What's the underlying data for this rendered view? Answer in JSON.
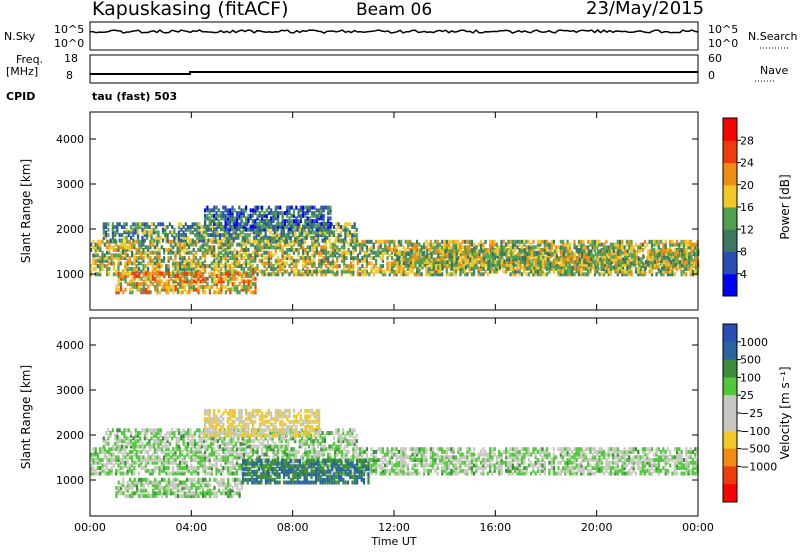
{
  "header": {
    "station": "Kapuskasing (fitACF)",
    "beam": "Beam 06",
    "date": "23/May/2015"
  },
  "status_panels": {
    "nsky_label": "N.Sky",
    "nsky_ticks": [
      "10^5",
      "10^0"
    ],
    "nsearch_label": "N.Search",
    "nsearch_ticks": [
      "10^5",
      "10^0"
    ],
    "freq_label": "Freq.",
    "freq_unit": "[MHz]",
    "freq_ticks": [
      "18",
      "8"
    ],
    "nave_label": "Nave",
    "nave_ticks": [
      "60",
      "0"
    ],
    "cpid_label": "CPID",
    "cpid_value": "tau (fast) 503"
  },
  "chart_data": [
    {
      "type": "heatmap",
      "name": "power-panel",
      "ylabel": "Slant Range [km]",
      "yticks": [
        1000,
        2000,
        3000,
        4000
      ],
      "ylim": [
        200,
        4600
      ],
      "xlim": [
        0,
        24
      ],
      "x_tick_values": [
        0,
        4,
        8,
        12,
        16,
        20,
        24
      ],
      "colorbar": {
        "label": "Power [dB]",
        "tick_labels": [
          "4",
          "8",
          "12",
          "16",
          "20",
          "24",
          "28"
        ],
        "range": [
          0,
          30
        ],
        "colors": [
          "#0000ff",
          "#2850b4",
          "#3c7860",
          "#50a050",
          "#f0c828",
          "#f08c14",
          "#f03c0a",
          "#ff0000"
        ]
      },
      "echo_bands": [
        {
          "t0": 0.0,
          "t1": 24.0,
          "r0": 950,
          "r1": 1700,
          "level": 16
        },
        {
          "t0": 0.5,
          "t1": 10.5,
          "r0": 1700,
          "r1": 2100,
          "level": 12
        },
        {
          "t0": 1.0,
          "t1": 6.5,
          "r0": 550,
          "r1": 1000,
          "level": 20
        },
        {
          "t0": 4.5,
          "t1": 9.5,
          "r0": 1950,
          "r1": 2450,
          "level": 8
        },
        {
          "t0": 12.0,
          "t1": 24.0,
          "r0": 1100,
          "r1": 1500,
          "level": 16
        }
      ]
    },
    {
      "type": "heatmap",
      "name": "velocity-panel",
      "ylabel": "Slant Range [km]",
      "yticks": [
        1000,
        2000,
        3000,
        4000
      ],
      "ylim": [
        200,
        4600
      ],
      "xlim": [
        0,
        24
      ],
      "xlabel": "Time UT",
      "x_tick_labels": [
        "00:00",
        "04:00",
        "08:00",
        "12:00",
        "16:00",
        "20:00",
        "00:00"
      ],
      "colorbar": {
        "label": "Velocity [m s⁻¹]",
        "tick_labels": [
          "1000",
          "500",
          "100",
          "25",
          "−25",
          "−100",
          "−500",
          "−1000"
        ],
        "range": [
          -1000,
          1000
        ],
        "colors": [
          "#2850b4",
          "#2864a0",
          "#3c8c3c",
          "#50c83c",
          "#c8c8c0",
          "#c8c8c0",
          "#f0c828",
          "#f08c14",
          "#f03c0a",
          "#ff0000"
        ]
      },
      "echo_bands": [
        {
          "t0": 0.0,
          "t1": 24.0,
          "r0": 1100,
          "r1": 1700,
          "velocity": 0
        },
        {
          "t0": 0.5,
          "t1": 10.5,
          "r0": 1700,
          "r1": 2100,
          "velocity": 0
        },
        {
          "t0": 4.5,
          "t1": 9.0,
          "r0": 1950,
          "r1": 2500,
          "velocity": -100
        },
        {
          "t0": 6.0,
          "t1": 11.0,
          "r0": 900,
          "r1": 1400,
          "velocity": 100
        },
        {
          "t0": 1.0,
          "t1": 6.0,
          "r0": 600,
          "r1": 1000,
          "velocity": 0
        }
      ]
    }
  ]
}
